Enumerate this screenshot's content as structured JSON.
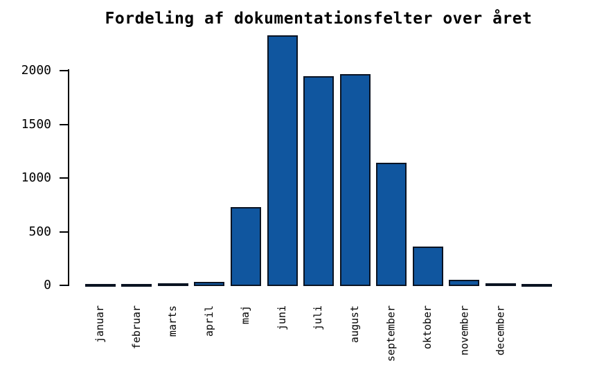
{
  "chart_data": {
    "type": "bar",
    "title": "Fordeling af dokumentationsfelter over året",
    "categories": [
      "januar",
      "februar",
      "marts",
      "april",
      "maj",
      "juni",
      "juli",
      "august",
      "september",
      "oktober",
      "november",
      "december",
      ""
    ],
    "values": [
      2,
      2,
      20,
      35,
      730,
      2330,
      1950,
      1970,
      1140,
      360,
      50,
      20,
      0
    ],
    "xlabel": "",
    "ylabel": "",
    "ylim": [
      0,
      2400
    ],
    "yticks": [
      0,
      500,
      1000,
      1500,
      2000
    ],
    "x_tick_rotation_deg": 90,
    "grid": false,
    "legend": false,
    "bar_color": "#10569f",
    "bar_border_color": "#0a1322",
    "axis_color": "#000000",
    "text_color": "#000000",
    "background_color": "#ffffff"
  }
}
